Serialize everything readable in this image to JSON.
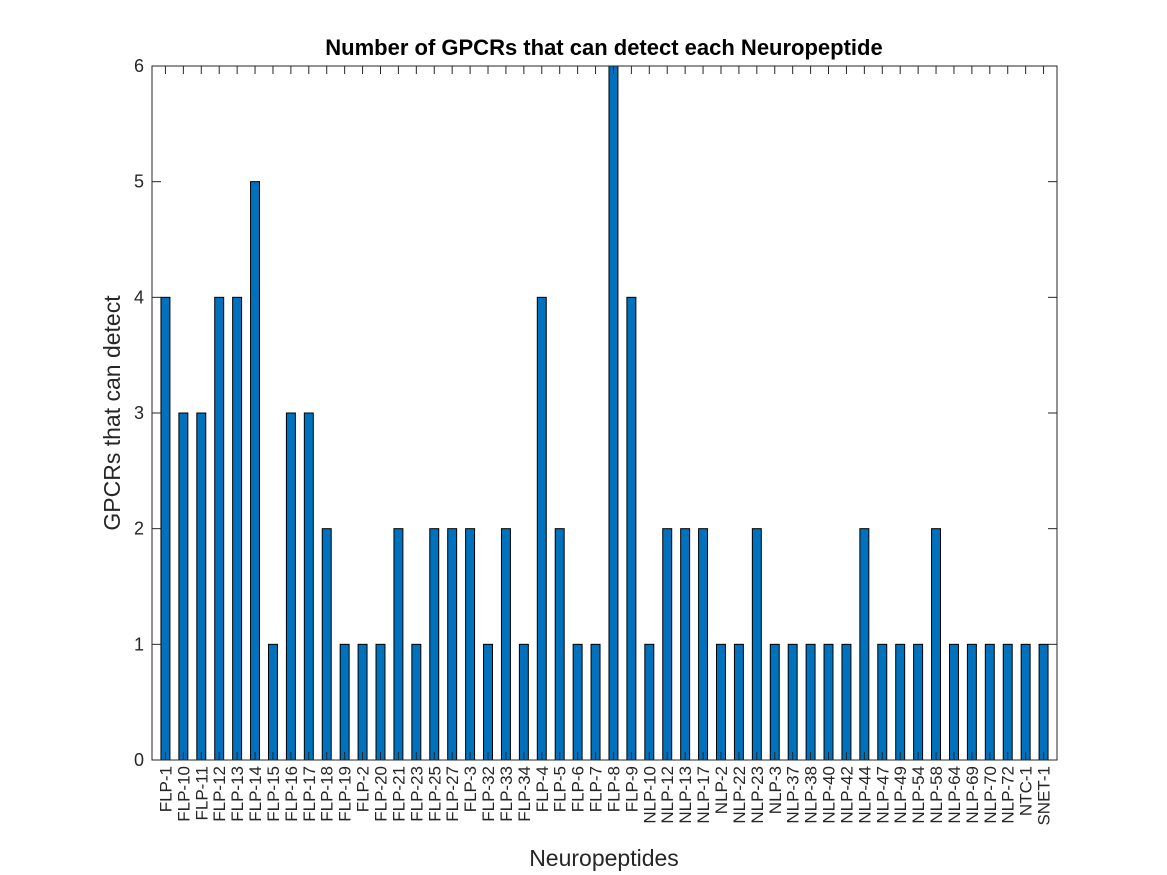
{
  "chart_data": {
    "type": "bar",
    "title": "Number of GPCRs that can detect each Neuropeptide",
    "xlabel": "Neuropeptides",
    "ylabel": "GPCRs that can detect",
    "ylim": [
      0,
      6
    ],
    "yticks": [
      0,
      1,
      2,
      3,
      4,
      5,
      6
    ],
    "grid": false,
    "bar_color": "#0072BD",
    "categories": [
      "FLP-1",
      "FLP-10",
      "FLP-11",
      "FLP-12",
      "FLP-13",
      "FLP-14",
      "FLP-15",
      "FLP-16",
      "FLP-17",
      "FLP-18",
      "FLP-19",
      "FLP-2",
      "FLP-20",
      "FLP-21",
      "FLP-23",
      "FLP-25",
      "FLP-27",
      "FLP-3",
      "FLP-32",
      "FLP-33",
      "FLP-34",
      "FLP-4",
      "FLP-5",
      "FLP-6",
      "FLP-7",
      "FLP-8",
      "FLP-9",
      "NLP-10",
      "NLP-12",
      "NLP-13",
      "NLP-17",
      "NLP-2",
      "NLP-22",
      "NLP-23",
      "NLP-3",
      "NLP-37",
      "NLP-38",
      "NLP-40",
      "NLP-42",
      "NLP-44",
      "NLP-47",
      "NLP-49",
      "NLP-54",
      "NLP-58",
      "NLP-64",
      "NLP-69",
      "NLP-70",
      "NLP-72",
      "NTC-1",
      "SNET-1"
    ],
    "values": [
      4,
      3,
      3,
      4,
      4,
      5,
      1,
      3,
      3,
      2,
      1,
      1,
      1,
      2,
      1,
      2,
      2,
      2,
      1,
      2,
      1,
      4,
      2,
      1,
      1,
      6,
      4,
      1,
      2,
      2,
      2,
      1,
      1,
      2,
      1,
      1,
      1,
      1,
      1,
      2,
      1,
      1,
      1,
      2,
      1,
      1,
      1,
      1,
      1,
      1
    ]
  }
}
